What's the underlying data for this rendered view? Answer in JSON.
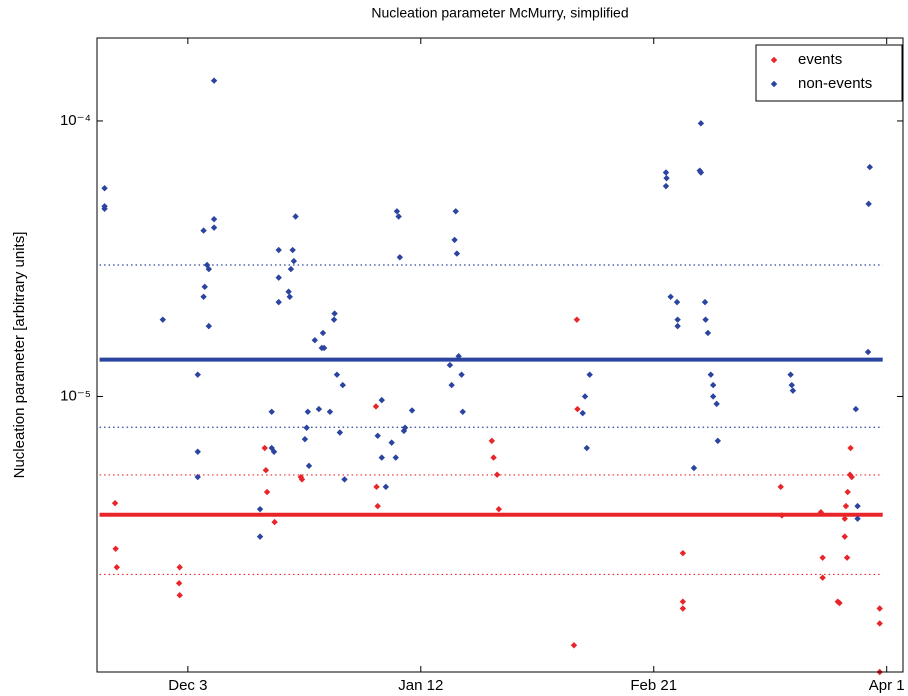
{
  "chart_data": {
    "type": "scatter",
    "title": "Nucleation parameter McMurry, simplified",
    "y_label": "Nucleation parameter [arbitrary units]",
    "log_y": true,
    "xlim": [
      -15.6,
      122.8
    ],
    "xticks": [
      {
        "value": 0,
        "label": "Dec 3"
      },
      {
        "value": 40,
        "label": "Jan 12"
      },
      {
        "value": 80,
        "label": "Feb 21"
      },
      {
        "value": 120,
        "label": "Apr 1"
      }
    ],
    "ylim": [
      1e-06,
      0.0002
    ],
    "yticks": [
      {
        "value": 1e-05,
        "label": "10⁻⁵"
      },
      {
        "value": 0.0001,
        "label": "10⁻⁴"
      }
    ],
    "legend_position": "upper right",
    "series": [
      {
        "name": "events",
        "color": "#e8262a",
        "x": [
          -12.5,
          -12.4,
          -12.2,
          -1.4,
          -1.5,
          -1.4,
          13.2,
          13.4,
          13.6,
          14.9,
          19.4,
          19.6,
          32.3,
          32.4,
          32.6,
          52.2,
          52.5,
          53.1,
          53.4,
          66.8,
          66.9,
          66.3,
          85.0,
          85.0,
          85.0,
          101.8,
          102.0,
          108.7,
          109.0,
          109.0,
          111.6,
          111.9,
          112.8,
          112.8,
          113.0,
          113.2,
          113.3,
          113.7,
          113.8,
          114.0,
          118.8,
          118.8,
          118.8
        ],
        "values": [
          4.1e-06,
          2.8e-06,
          2.4e-06,
          2.4e-06,
          2.1e-06,
          1.9e-06,
          6.5e-06,
          5.4e-06,
          4.5e-06,
          3.5e-06,
          5.1e-06,
          5e-06,
          9.2e-06,
          4.7e-06,
          4e-06,
          6.9e-06,
          6e-06,
          5.2e-06,
          3.9e-06,
          1.9e-05,
          9e-06,
          1.25e-06,
          2.7e-06,
          1.8e-06,
          1.7e-06,
          4.7e-06,
          3.7e-06,
          3.8e-06,
          2.6e-06,
          2.2e-06,
          1.8e-06,
          1.78e-06,
          3.1e-06,
          3.6e-06,
          4e-06,
          2.6e-06,
          4.5e-06,
          5.2e-06,
          6.5e-06,
          5.1e-06,
          1.7e-06,
          1.5e-06,
          1e-06
        ]
      },
      {
        "name": "non-events",
        "color": "#2a44a0",
        "x": [
          -14.3,
          -14.3,
          -14.3,
          -4.3,
          1.7,
          1.7,
          1.7,
          2.7,
          2.7,
          2.9,
          3.3,
          3.6,
          3.6,
          4.5,
          4.5,
          4.5,
          12.4,
          12.4,
          14.4,
          14.4,
          14.8,
          15.6,
          15.6,
          15.6,
          17.3,
          17.5,
          17.7,
          18.0,
          18.2,
          18.5,
          20.1,
          20.4,
          20.6,
          20.8,
          21.8,
          22.5,
          23.0,
          23.2,
          23.4,
          24.4,
          25.1,
          25.2,
          25.6,
          26.1,
          26.6,
          26.9,
          32.6,
          33.3,
          33.3,
          34.0,
          35.0,
          35.7,
          35.9,
          36.2,
          36.4,
          37.1,
          37.3,
          38.5,
          45.0,
          45.3,
          45.8,
          46.0,
          46.2,
          46.5,
          47.0,
          47.2,
          67.8,
          68.2,
          69.0,
          68.5,
          82.1,
          82.1,
          82.2,
          82.9,
          84.0,
          84.1,
          84.1,
          87.9,
          88.1,
          88.1,
          88.8,
          88.9,
          89.3,
          89.8,
          90.2,
          90.2,
          90.8,
          91.0,
          86.9,
          103.5,
          103.7,
          103.9,
          114.7,
          115.0,
          115.0,
          116.8,
          116.9,
          117.1
        ],
        "values": [
          5.7e-05,
          4.8e-05,
          4.9e-05,
          1.9e-05,
          1.2e-05,
          5.1e-06,
          6.3e-06,
          4e-05,
          2.3e-05,
          2.5e-05,
          3e-05,
          2.9e-05,
          1.8e-05,
          4.4e-05,
          4.1e-05,
          0.00014,
          3.9e-06,
          3.1e-06,
          8.8e-06,
          6.5e-06,
          6.3e-06,
          2.2e-05,
          3.4e-05,
          2.7e-05,
          2.4e-05,
          2.3e-05,
          2.9e-05,
          3.4e-05,
          3.1e-05,
          4.5e-05,
          7e-06,
          7.7e-06,
          8.8e-06,
          5.6e-06,
          1.6e-05,
          9e-06,
          1.5e-05,
          1.7e-05,
          1.5e-05,
          8.8e-06,
          1.9e-05,
          2e-05,
          1.2e-05,
          7.4e-06,
          1.1e-05,
          5e-06,
          7.2e-06,
          6e-06,
          9.7e-06,
          4.7e-06,
          6.8e-06,
          6e-06,
          4.7e-05,
          4.5e-05,
          3.2e-05,
          7.5e-06,
          7.7e-06,
          8.9e-06,
          1.3e-05,
          1.1e-05,
          3.7e-05,
          4.7e-05,
          3.3e-05,
          1.4e-05,
          1.2e-05,
          8.8e-06,
          8.7e-06,
          1e-05,
          1.2e-05,
          6.5e-06,
          5.8e-05,
          6.5e-05,
          6.2e-05,
          2.3e-05,
          2.2e-05,
          1.9e-05,
          1.8e-05,
          6.6e-05,
          6.5e-05,
          9.8e-05,
          2.2e-05,
          1.9e-05,
          1.7e-05,
          1.2e-05,
          1.1e-05,
          1e-05,
          9.4e-06,
          6.9e-06,
          5.5e-06,
          1.2e-05,
          1.1e-05,
          1.05e-05,
          9e-06,
          4e-06,
          3.6e-06,
          1.45e-05,
          5e-05,
          6.8e-05
        ]
      }
    ],
    "reference_lines": [
      {
        "value": 1.36e-05,
        "color": "#2a44a0",
        "style": "solid"
      },
      {
        "value": 3e-05,
        "color": "#2a44a0",
        "style": "dotted"
      },
      {
        "value": 7.73e-06,
        "color": "#2a44a0",
        "style": "dotted"
      },
      {
        "value": 3.72e-06,
        "color": "#e8262a",
        "style": "solid"
      },
      {
        "value": 5.19e-06,
        "color": "#e8262a",
        "style": "dotted"
      },
      {
        "value": 2.26e-06,
        "color": "#e8262a",
        "style": "dotted"
      }
    ]
  }
}
